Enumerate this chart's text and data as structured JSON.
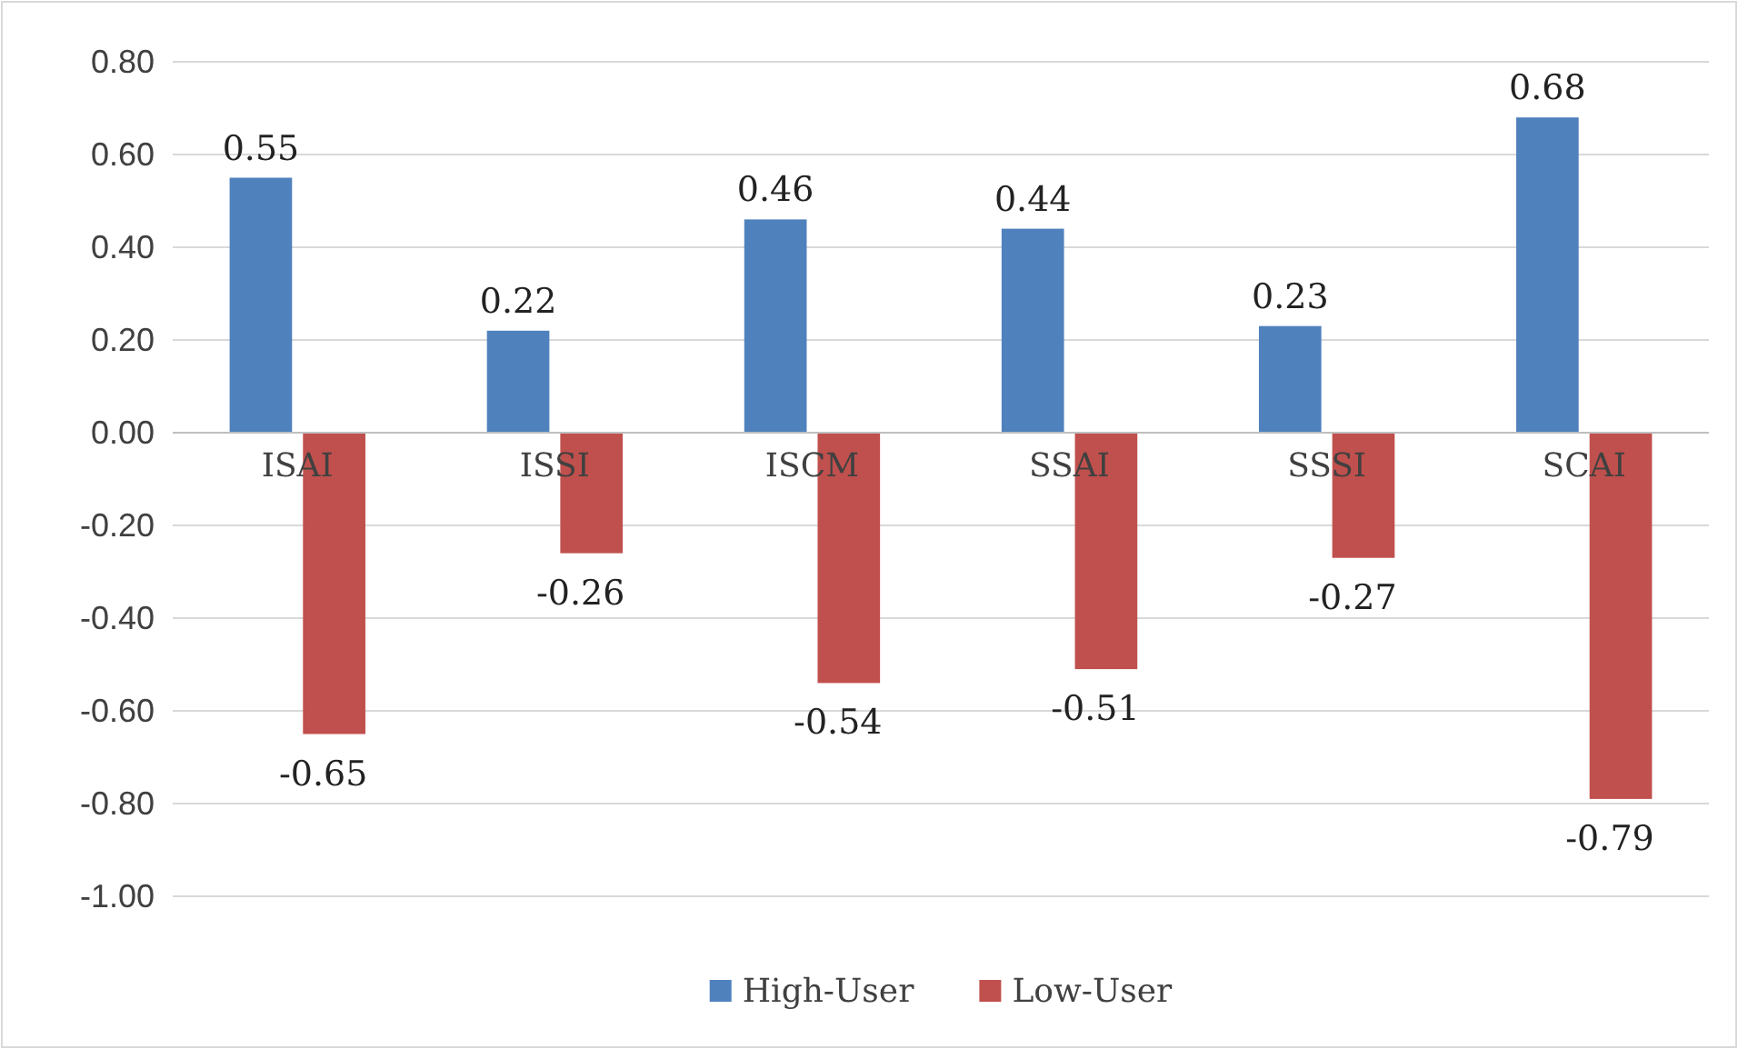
{
  "chart_data": {
    "type": "bar",
    "categories": [
      "ISAI",
      "ISSI",
      "ISCM",
      "SSAI",
      "SSSI",
      "SCAI"
    ],
    "series": [
      {
        "name": "High-User",
        "color": "#4f81bd",
        "values": [
          0.55,
          0.22,
          0.46,
          0.44,
          0.23,
          0.68
        ]
      },
      {
        "name": "Low-User",
        "color": "#c0504d",
        "values": [
          -0.65,
          -0.26,
          -0.54,
          -0.51,
          -0.27,
          -0.79
        ]
      }
    ],
    "ylim": [
      -1.0,
      0.8
    ],
    "yticks": [
      {
        "value": -1.0,
        "label": "-1.00"
      },
      {
        "value": -0.8,
        "label": "-0.80"
      },
      {
        "value": -0.6,
        "label": "-0.60"
      },
      {
        "value": -0.4,
        "label": "-0.40"
      },
      {
        "value": -0.2,
        "label": "-0.20"
      },
      {
        "value": 0,
        "label": "0.00"
      },
      {
        "value": 0.2,
        "label": "0.20"
      },
      {
        "value": 0.4,
        "label": "0.40"
      },
      {
        "value": 0.6,
        "label": "0.60"
      },
      {
        "value": 0.8,
        "label": "0.80"
      }
    ],
    "grid": "y",
    "legend": "bottom",
    "data_labels": true
  }
}
